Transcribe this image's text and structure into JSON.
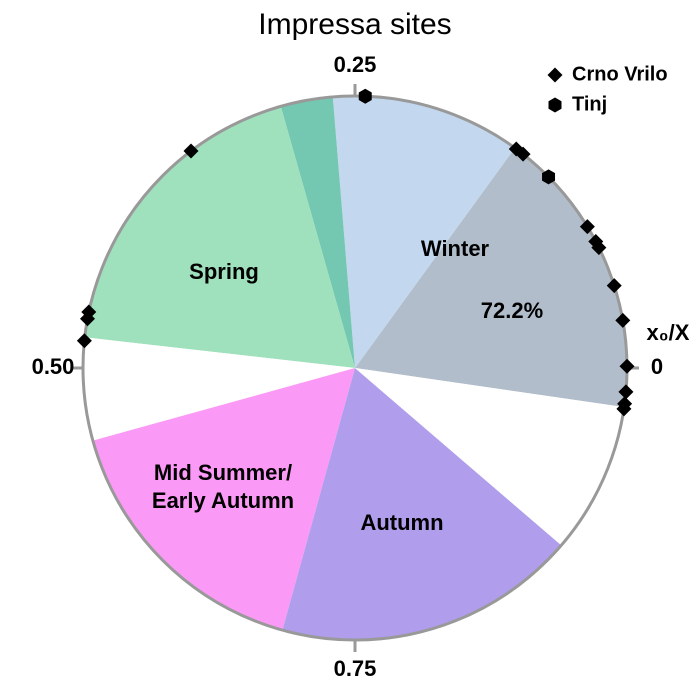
{
  "chart_data": {
    "type": "circular",
    "title": "Impressa sites",
    "axis_label": "x₀/X",
    "ticks": [
      0,
      0.25,
      {
        "value": 0.5,
        "label": "0.50"
      },
      0.75
    ],
    "sectors": [
      {
        "label": "Winter",
        "start": -0.023,
        "end": 0.15,
        "color": "#b1bdca"
      },
      {
        "start": 0.15,
        "end": 0.263,
        "color": "#c3d8ef"
      },
      {
        "start": 0.263,
        "end": 0.294,
        "color": "#74c8b1"
      },
      {
        "label": "Spring",
        "start": 0.294,
        "end": 0.482,
        "color": "#9fe0bd"
      },
      {
        "start": 0.482,
        "end": 0.543,
        "color": "#ffffff"
      },
      {
        "label": "Mid Summer/\nEarly Autumn",
        "start": 0.543,
        "end": 0.707,
        "color": "#fb9af6"
      },
      {
        "label": "Autumn",
        "start": 0.707,
        "end": 0.887,
        "color": "#b09dec"
      },
      {
        "start": 0.887,
        "end": 0.977,
        "color": "#ffffff"
      }
    ],
    "annotation": "72.2%",
    "series": [
      {
        "name": "Crno Vrilo",
        "marker": "diamond",
        "color": "#000000",
        "values": [
          0.353,
          0.149,
          0.144,
          0.087,
          0.077,
          0.073,
          0.049,
          0.028,
          0.001,
          0.986,
          0.979,
          0.976,
          0.467,
          0.471,
          0.484
        ]
      },
      {
        "name": "Tinj",
        "marker": "hexagon",
        "color": "#000000",
        "values": [
          0.244,
          0.124
        ]
      }
    ]
  }
}
